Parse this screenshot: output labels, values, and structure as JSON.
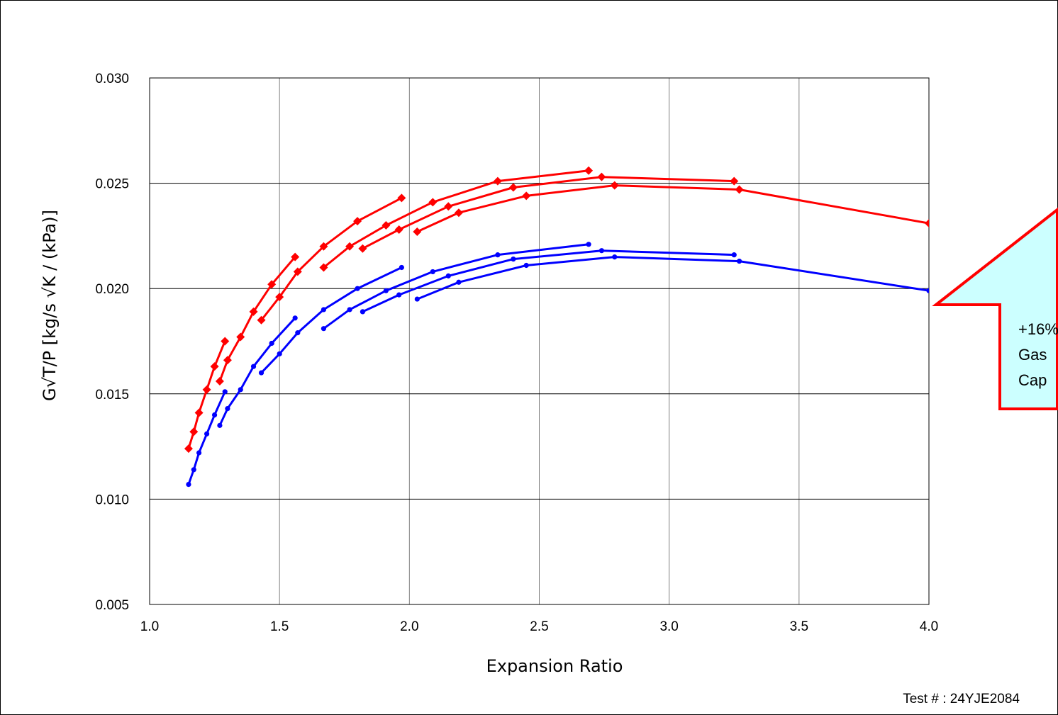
{
  "footer": {
    "test_number": "Test # : 24YJE2084"
  },
  "callout": {
    "lines": [
      "+16%",
      "Gas",
      "Cap"
    ],
    "fill_color": "#ccffff",
    "border_color": "#ff0000"
  },
  "chart_data": {
    "type": "line",
    "xlabel": "Expansion Ratio",
    "ylabel": "G√T/P [kg/s √K / (kPa)]",
    "xlim": [
      1.0,
      4.0
    ],
    "ylim": [
      0.005,
      0.03
    ],
    "xticks": [
      "1.0",
      "1.5",
      "2.0",
      "2.5",
      "3.0",
      "3.5",
      "4.0"
    ],
    "yticks": [
      "0.005",
      "0.010",
      "0.015",
      "0.020",
      "0.025",
      "0.030"
    ],
    "grid": true,
    "legend": "none",
    "series": [
      {
        "color": "#ff0000",
        "marker": "diamond",
        "points": [
          [
            1.15,
            0.0124
          ],
          [
            1.17,
            0.0132
          ],
          [
            1.19,
            0.0141
          ],
          [
            1.22,
            0.0152
          ],
          [
            1.25,
            0.0163
          ],
          [
            1.29,
            0.0175
          ]
        ]
      },
      {
        "color": "#ff0000",
        "marker": "diamond",
        "points": [
          [
            1.27,
            0.0156
          ],
          [
            1.3,
            0.0166
          ],
          [
            1.35,
            0.0177
          ],
          [
            1.4,
            0.0189
          ],
          [
            1.47,
            0.0202
          ],
          [
            1.56,
            0.0215
          ]
        ]
      },
      {
        "color": "#ff0000",
        "marker": "diamond",
        "points": [
          [
            1.43,
            0.0185
          ],
          [
            1.5,
            0.0196
          ],
          [
            1.57,
            0.0208
          ],
          [
            1.67,
            0.022
          ],
          [
            1.8,
            0.0232
          ],
          [
            1.97,
            0.0243
          ]
        ]
      },
      {
        "color": "#ff0000",
        "marker": "diamond",
        "points": [
          [
            1.67,
            0.021
          ],
          [
            1.77,
            0.022
          ],
          [
            1.91,
            0.023
          ],
          [
            2.09,
            0.0241
          ],
          [
            2.34,
            0.0251
          ],
          [
            2.69,
            0.0256
          ]
        ]
      },
      {
        "color": "#ff0000",
        "marker": "diamond",
        "points": [
          [
            1.82,
            0.0219
          ],
          [
            1.96,
            0.0228
          ],
          [
            2.15,
            0.0239
          ],
          [
            2.4,
            0.0248
          ],
          [
            2.74,
            0.0253
          ],
          [
            3.25,
            0.0251
          ]
        ]
      },
      {
        "color": "#ff0000",
        "marker": "diamond",
        "points": [
          [
            2.03,
            0.0227
          ],
          [
            2.19,
            0.0236
          ],
          [
            2.45,
            0.0244
          ],
          [
            2.79,
            0.0249
          ],
          [
            3.27,
            0.0247
          ],
          [
            4.0,
            0.0231
          ]
        ]
      },
      {
        "color": "#0000ff",
        "marker": "circle",
        "points": [
          [
            1.15,
            0.0107
          ],
          [
            1.17,
            0.0114
          ],
          [
            1.19,
            0.0122
          ],
          [
            1.22,
            0.0131
          ],
          [
            1.25,
            0.014
          ],
          [
            1.29,
            0.0151
          ]
        ]
      },
      {
        "color": "#0000ff",
        "marker": "circle",
        "points": [
          [
            1.27,
            0.0135
          ],
          [
            1.3,
            0.0143
          ],
          [
            1.35,
            0.0152
          ],
          [
            1.4,
            0.0163
          ],
          [
            1.47,
            0.0174
          ],
          [
            1.56,
            0.0186
          ]
        ]
      },
      {
        "color": "#0000ff",
        "marker": "circle",
        "points": [
          [
            1.43,
            0.016
          ],
          [
            1.5,
            0.0169
          ],
          [
            1.57,
            0.0179
          ],
          [
            1.67,
            0.019
          ],
          [
            1.8,
            0.02
          ],
          [
            1.97,
            0.021
          ]
        ]
      },
      {
        "color": "#0000ff",
        "marker": "circle",
        "points": [
          [
            1.67,
            0.0181
          ],
          [
            1.77,
            0.019
          ],
          [
            1.91,
            0.0199
          ],
          [
            2.09,
            0.0208
          ],
          [
            2.34,
            0.0216
          ],
          [
            2.69,
            0.0221
          ]
        ]
      },
      {
        "color": "#0000ff",
        "marker": "circle",
        "points": [
          [
            1.82,
            0.0189
          ],
          [
            1.96,
            0.0197
          ],
          [
            2.15,
            0.0206
          ],
          [
            2.4,
            0.0214
          ],
          [
            2.74,
            0.0218
          ],
          [
            3.25,
            0.0216
          ]
        ]
      },
      {
        "color": "#0000ff",
        "marker": "circle",
        "points": [
          [
            2.03,
            0.0195
          ],
          [
            2.19,
            0.0203
          ],
          [
            2.45,
            0.0211
          ],
          [
            2.79,
            0.0215
          ],
          [
            3.27,
            0.0213
          ],
          [
            4.0,
            0.0199
          ]
        ]
      }
    ]
  }
}
